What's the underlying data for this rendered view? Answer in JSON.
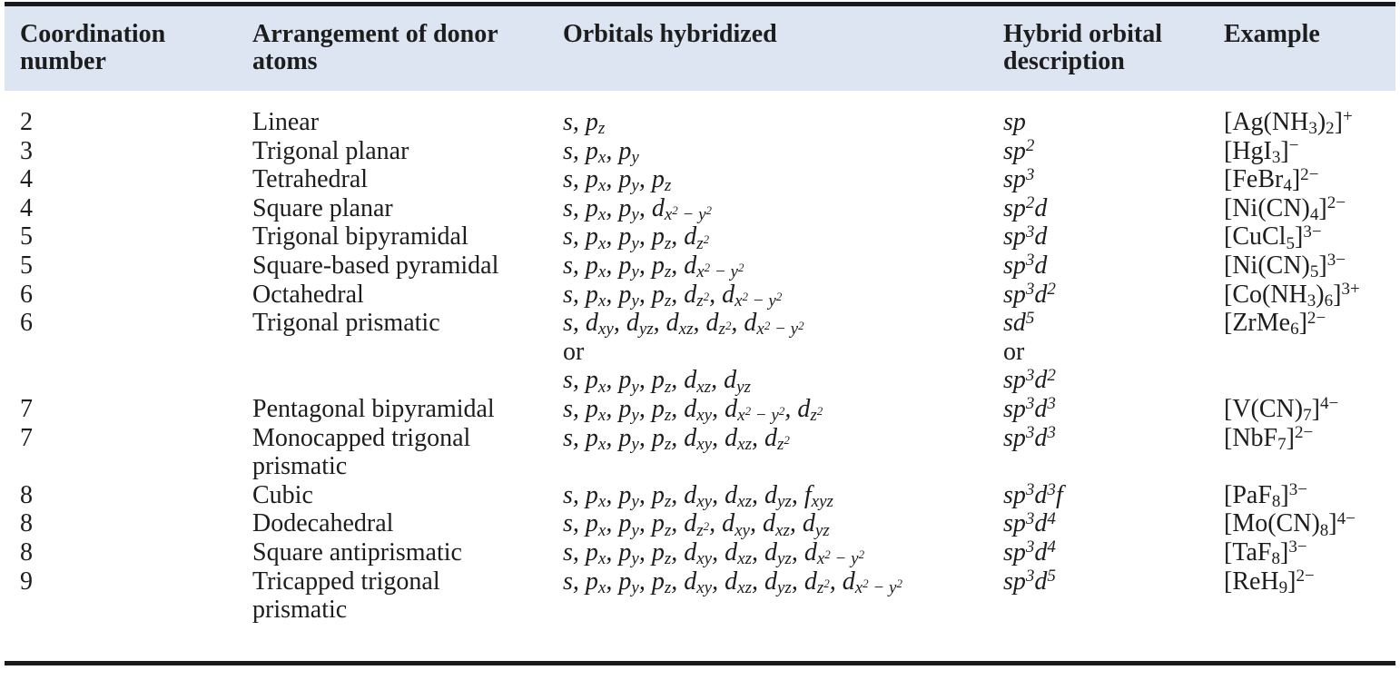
{
  "page": {
    "background": "#ffffff",
    "header_bg": "#dee5f2",
    "rule_color": "#1a1a1a",
    "text_color": "#1d1d1d"
  },
  "table": {
    "headers": [
      "Coordination\nnumber",
      "Arrangement of donor\natoms",
      "Orbitals hybridized",
      "Hybrid orbital\ndescription",
      "Example"
    ],
    "rows": [
      {
        "cn": "2",
        "arrangement": "Linear",
        "orbitals": [
          "s, p_{z}"
        ],
        "hybrid": [
          "sp"
        ],
        "example": "[Ag(NH_{3})_{2}]^{+}"
      },
      {
        "cn": "3",
        "arrangement": "Trigonal planar",
        "orbitals": [
          "s, p_{x}, p_{y}"
        ],
        "hybrid": [
          "sp^{2}"
        ],
        "example": "[HgI_{3}]^{−}"
      },
      {
        "cn": "4",
        "arrangement": "Tetrahedral",
        "orbitals": [
          "s, p_{x}, p_{y}, p_{z}"
        ],
        "hybrid": [
          "sp^{3}"
        ],
        "example": "[FeBr_{4}]^{2−}"
      },
      {
        "cn": "4",
        "arrangement": "Square planar",
        "orbitals": [
          "s, p_{x}, p_{y}, d_{x^{2} − y^{2}}"
        ],
        "hybrid": [
          "sp^{2}d"
        ],
        "example": "[Ni(CN)_{4}]^{2−}"
      },
      {
        "cn": "5",
        "arrangement": "Trigonal bipyramidal",
        "orbitals": [
          "s, p_{x}, p_{y}, p_{z}, d_{z^{2}}"
        ],
        "hybrid": [
          "sp^{3}d"
        ],
        "example": "[CuCl_{5}]^{3−}"
      },
      {
        "cn": "5",
        "arrangement": "Square-based pyramidal",
        "orbitals": [
          "s, p_{x}, p_{y}, p_{z}, d_{x^{2} − y^{2}}"
        ],
        "hybrid": [
          "sp^{3}d"
        ],
        "example": "[Ni(CN)_{5}]^{3−}"
      },
      {
        "cn": "6",
        "arrangement": "Octahedral",
        "orbitals": [
          "s, p_{x}, p_{y}, p_{z}, d_{z^{2}}, d_{x^{2} − y^{2}}"
        ],
        "hybrid": [
          "sp^{3}d^{2}"
        ],
        "example": "[Co(NH_{3})_{6}]^{3+}"
      },
      {
        "cn": "6",
        "arrangement": "Trigonal prismatic",
        "orbitals": [
          "s, d_{xy}, d_{yz}, d_{xz}, d_{z^{2}}, d_{x^{2} − y^{2}}",
          "or",
          "s, p_{x}, p_{y}, p_{z}, d_{xz}, d_{yz}"
        ],
        "hybrid": [
          "sd^{5}",
          "or",
          "sp^{3}d^{2}"
        ],
        "example": "[ZrMe_{6}]^{2−}"
      },
      {
        "cn": "7",
        "arrangement": "Pentagonal bipyramidal",
        "orbitals": [
          "s, p_{x}, p_{y}, p_{z}, d_{xy}, d_{x^{2} − y^{2}}, d_{z^{2}}"
        ],
        "hybrid": [
          "sp^{3}d^{3}"
        ],
        "example": "[V(CN)_{7}]^{4−}"
      },
      {
        "cn": "7",
        "arrangement": "Monocapped trigonal\nprismatic",
        "orbitals": [
          "s, p_{x}, p_{y}, p_{z}, d_{xy}, d_{xz}, d_{z^{2}}"
        ],
        "hybrid": [
          "sp^{3}d^{3}"
        ],
        "example": "[NbF_{7}]^{2−}"
      },
      {
        "cn": "8",
        "arrangement": "Cubic",
        "orbitals": [
          "s, p_{x}, p_{y}, p_{z}, d_{xy}, d_{xz}, d_{yz}, f_{xyz}"
        ],
        "hybrid": [
          "sp^{3}d^{3}f"
        ],
        "example": "[PaF_{8}]^{3−}"
      },
      {
        "cn": "8",
        "arrangement": "Dodecahedral",
        "orbitals": [
          "s, p_{x}, p_{y}, p_{z}, d_{z^{2}}, d_{xy}, d_{xz}, d_{yz}"
        ],
        "hybrid": [
          "sp^{3}d^{4}"
        ],
        "example": "[Mo(CN)_{8}]^{4−}"
      },
      {
        "cn": "8",
        "arrangement": "Square antiprismatic",
        "orbitals": [
          "s, p_{x}, p_{y}, p_{z}, d_{xy}, d_{xz}, d_{yz}, d_{x^{2} − y^{2}}"
        ],
        "hybrid": [
          "sp^{3}d^{4}"
        ],
        "example": "[TaF_{8}]^{3−}"
      },
      {
        "cn": "9",
        "arrangement": "Tricapped trigonal\nprismatic",
        "orbitals": [
          "s, p_{x}, p_{y}, p_{z}, d_{xy}, d_{xz}, d_{yz}, d_{z^{2}}, d_{x^{2} − y^{2}}"
        ],
        "hybrid": [
          "sp^{3}d^{5}"
        ],
        "example": "[ReH_{9}]^{2−}"
      }
    ]
  }
}
